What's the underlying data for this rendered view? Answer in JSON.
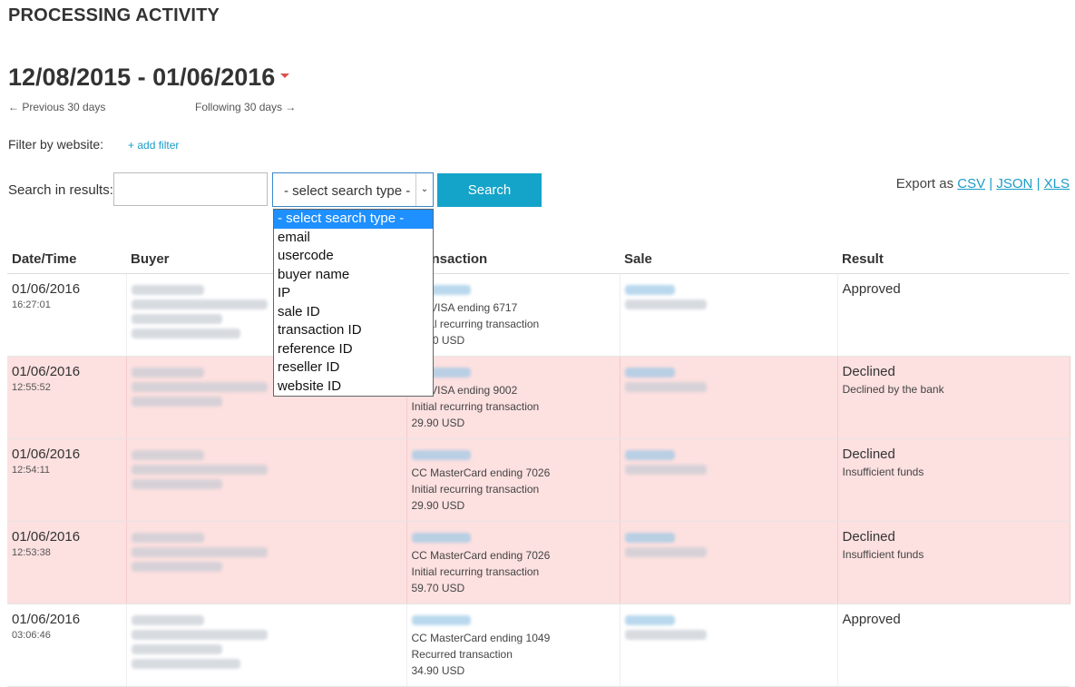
{
  "page_title": "PROCESSING ACTIVITY",
  "date_range": "12/08/2015 - 01/06/2016",
  "nav": {
    "previous": "← Previous 30 days",
    "following": "Following 30 days →"
  },
  "filter": {
    "label": "Filter by website:",
    "add_filter": "+ add filter"
  },
  "search": {
    "label": "Search in results:",
    "input_value": "",
    "select_value": "- select search type -",
    "button": "Search",
    "options": [
      "- select search type -",
      "email",
      "usercode",
      "buyer name",
      "IP",
      "sale ID",
      "transaction ID",
      "reference ID",
      "reseller ID",
      "website ID"
    ]
  },
  "export": {
    "label": "Export as",
    "csv": "CSV",
    "json": "JSON",
    "xls": "XLS",
    "separator": "|"
  },
  "table": {
    "headers": [
      "Date/Time",
      "Buyer",
      "Transaction",
      "Sale",
      "Result"
    ],
    "rows": [
      {
        "status": "approved",
        "date": "01/06/2016",
        "time": "16:27:01",
        "buyer_lines": 4,
        "tx": [
          "CC VISA ending 6717",
          "Initial recurring transaction",
          "29.90 USD"
        ],
        "result": "Approved",
        "result_sub": ""
      },
      {
        "status": "declined",
        "date": "01/06/2016",
        "time": "12:55:52",
        "buyer_lines": 3,
        "tx": [
          "CC VISA ending 9002",
          "Initial recurring transaction",
          "29.90 USD"
        ],
        "result": "Declined",
        "result_sub": "Declined by the bank"
      },
      {
        "status": "declined",
        "date": "01/06/2016",
        "time": "12:54:11",
        "buyer_lines": 3,
        "tx": [
          "CC MasterCard ending 7026",
          "Initial recurring transaction",
          "29.90 USD"
        ],
        "result": "Declined",
        "result_sub": "Insufficient funds"
      },
      {
        "status": "declined",
        "date": "01/06/2016",
        "time": "12:53:38",
        "buyer_lines": 3,
        "tx": [
          "CC MasterCard ending 7026",
          "Initial recurring transaction",
          "59.70 USD"
        ],
        "result": "Declined",
        "result_sub": "Insufficient funds"
      },
      {
        "status": "approved",
        "date": "01/06/2016",
        "time": "03:06:46",
        "buyer_lines": 4,
        "tx": [
          "CC MasterCard ending 1049",
          "Recurred transaction",
          "34.90 USD"
        ],
        "result": "Approved",
        "result_sub": ""
      }
    ]
  },
  "colors": {
    "accent": "#15a4c9",
    "link": "#1a9bc7",
    "declined_bg": "#fde0e0",
    "dropdown_highlight": "#1e90ff"
  }
}
